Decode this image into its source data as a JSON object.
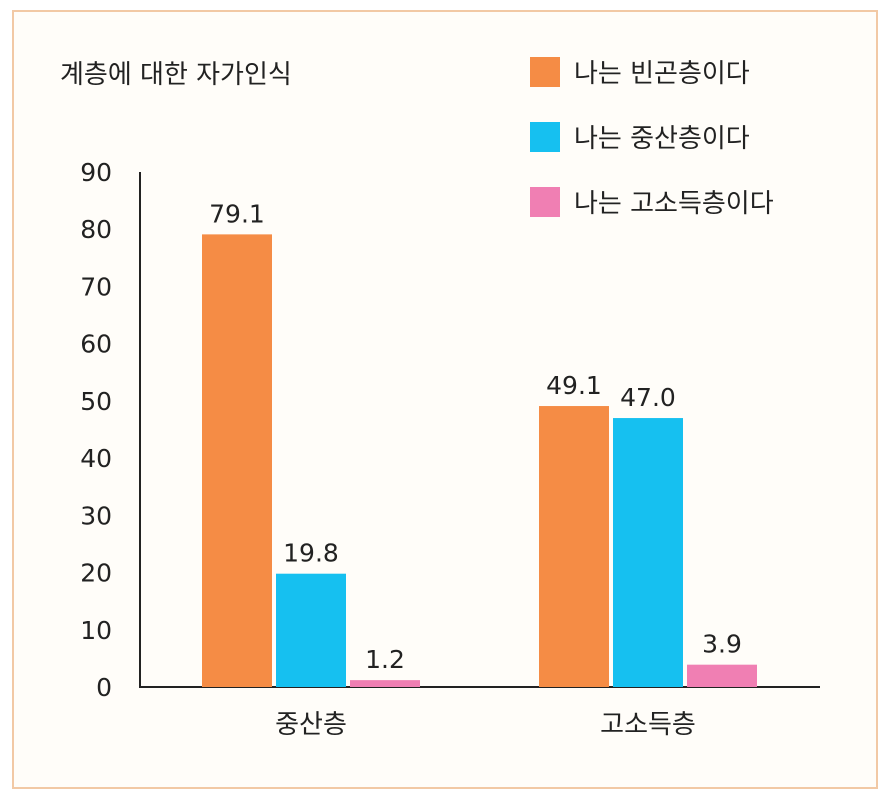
{
  "chart_data": {
    "type": "bar",
    "title": "계층에 대한 자가인식",
    "categories": [
      "중산층",
      "고소득층"
    ],
    "series": [
      {
        "name": "나는 빈곤층이다",
        "color": "#f58c45",
        "values": [
          79.1,
          49.1
        ],
        "labels": [
          "79.1",
          "49.1"
        ]
      },
      {
        "name": "나는 중산층이다",
        "color": "#16c0f0",
        "values": [
          19.8,
          47.0
        ],
        "labels": [
          "19.8",
          "47.0"
        ]
      },
      {
        "name": "나는 고소득층이다",
        "color": "#f07fb3",
        "values": [
          1.2,
          3.9
        ],
        "labels": [
          "1.2",
          "3.9"
        ]
      }
    ],
    "yticks": [
      "0",
      "10",
      "20",
      "30",
      "40",
      "50",
      "60",
      "70",
      "80",
      "90"
    ],
    "ylim": [
      0,
      90
    ],
    "legend_position": "top-right",
    "grid": false
  }
}
